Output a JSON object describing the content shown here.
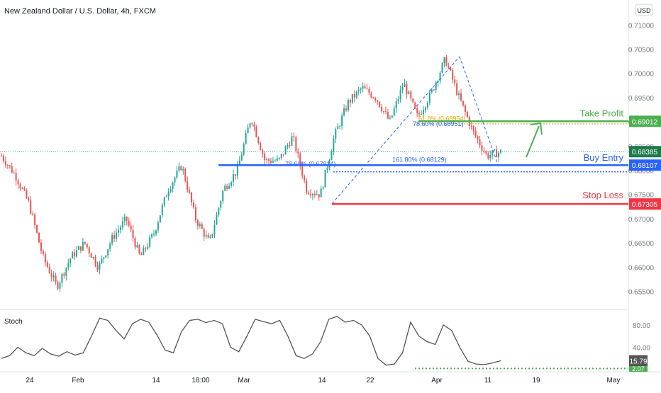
{
  "header": {
    "title": "New Zealand Dollar / U.S. Dollar, 4h, FXCM",
    "currency_button": "USD"
  },
  "colors": {
    "up_candle": "#26a69a",
    "down_candle": "#ef5350",
    "take_profit": "#4caf50",
    "buy_entry": "#2962ff",
    "stop_loss": "#f23645",
    "fib": "#2962ff",
    "fib_gold": "#e0a800",
    "stoch_line": "#555555",
    "stoch_dotted": "#4caf50",
    "axis_text": "#787b86",
    "grid": "#e0e3eb"
  },
  "chart_data": [
    {
      "type": "candlestick",
      "title": "New Zealand Dollar / U.S. Dollar, 4h, FXCM",
      "ylim": [
        0.652,
        0.714
      ],
      "y_ticks": [
        "0.71000",
        "0.70500",
        "0.70000",
        "0.69500",
        "0.69000",
        "0.68500",
        "0.68000",
        "0.67500",
        "0.67000",
        "0.66500",
        "0.66000",
        "0.65500"
      ],
      "y_tick_values": [
        0.71,
        0.705,
        0.7,
        0.695,
        0.69,
        0.685,
        0.68,
        0.675,
        0.67,
        0.665,
        0.66,
        0.655
      ],
      "x_ticks": [
        "24",
        "Feb",
        "14",
        "18:00",
        "Mar",
        "14",
        "22",
        "Apr",
        "11",
        "19",
        "May"
      ],
      "price_path": [
        {
          "x": "Jan 17",
          "y": 0.683
        },
        {
          "x": "Jan 20",
          "y": 0.679
        },
        {
          "x": "Jan 24",
          "y": 0.673
        },
        {
          "x": "Jan 27",
          "y": 0.662
        },
        {
          "x": "Jan 30",
          "y": 0.656
        },
        {
          "x": "Feb 2",
          "y": 0.662
        },
        {
          "x": "Feb 6",
          "y": 0.665
        },
        {
          "x": "Feb 9",
          "y": 0.66
        },
        {
          "x": "Feb 12",
          "y": 0.666
        },
        {
          "x": "Feb 15",
          "y": 0.67
        },
        {
          "x": "Feb 18",
          "y": 0.662
        },
        {
          "x": "Feb 21",
          "y": 0.667
        },
        {
          "x": "Feb 24",
          "y": 0.676
        },
        {
          "x": "Feb 26",
          "y": 0.681
        },
        {
          "x": "Feb 28",
          "y": 0.67
        },
        {
          "x": "Mar 1",
          "y": 0.665
        },
        {
          "x": "Mar 3",
          "y": 0.676
        },
        {
          "x": "Mar 6",
          "y": 0.68
        },
        {
          "x": "Mar 9",
          "y": 0.691
        },
        {
          "x": "Mar 10",
          "y": 0.682
        },
        {
          "x": "Mar 13",
          "y": 0.682
        },
        {
          "x": "Mar 15",
          "y": 0.687
        },
        {
          "x": "Mar 17",
          "y": 0.676
        },
        {
          "x": "Mar 18",
          "y": 0.675
        },
        {
          "x": "Mar 20",
          "y": 0.687
        },
        {
          "x": "Mar 22",
          "y": 0.694
        },
        {
          "x": "Mar 24",
          "y": 0.697
        },
        {
          "x": "Mar 27",
          "y": 0.695
        },
        {
          "x": "Mar 29",
          "y": 0.69
        },
        {
          "x": "Mar 31",
          "y": 0.698
        },
        {
          "x": "Apr 3",
          "y": 0.691
        },
        {
          "x": "Apr 5",
          "y": 0.696
        },
        {
          "x": "Apr 7",
          "y": 0.703
        },
        {
          "x": "Apr 8",
          "y": 0.695
        },
        {
          "x": "Apr 10",
          "y": 0.688
        },
        {
          "x": "Apr 12",
          "y": 0.683
        },
        {
          "x": "Apr 14",
          "y": 0.6838
        }
      ],
      "horizontal_levels": [
        {
          "name": "Take Profit",
          "value": 0.69012,
          "label": "0.69012",
          "color": "#4caf50"
        },
        {
          "name": "Buy Entry",
          "value": 0.68107,
          "label": "0.68107",
          "color": "#2962ff"
        },
        {
          "name": "Stop Loss",
          "value": 0.67305,
          "label": "0.67305",
          "color": "#f23645"
        }
      ],
      "current_price": {
        "value": 0.68385,
        "label": "0.68385"
      },
      "annotations": [
        {
          "text": "61.8% (0.68954)",
          "display": "61.8% (0.68954)"
        },
        {
          "text": "78.60% (0.68951)",
          "display": "78.60% (0.68951)"
        },
        {
          "text": "161.80% (0.68129)",
          "display": "161.80% (0.68129)"
        },
        {
          "text": "78.60% (0.67914)",
          "display": "78.60% (0.67914)"
        }
      ]
    },
    {
      "type": "line",
      "name": "Stoch",
      "ylim": [
        0,
        100
      ],
      "y_ticks": [
        "80.00",
        "40.00"
      ],
      "y_tick_values": [
        80,
        40
      ],
      "current_value": {
        "value": 15.79,
        "label": "15.79"
      },
      "dotted_level": {
        "value": 2.07,
        "label": "2.07"
      },
      "values": [
        20,
        25,
        40,
        30,
        25,
        38,
        28,
        24,
        32,
        26,
        30,
        60,
        92,
        88,
        70,
        55,
        82,
        90,
        85,
        62,
        35,
        30,
        68,
        88,
        90,
        84,
        88,
        82,
        40,
        32,
        60,
        90,
        86,
        82,
        88,
        60,
        25,
        20,
        28,
        50,
        90,
        95,
        85,
        88,
        80,
        60,
        20,
        8,
        10,
        30,
        85,
        60,
        50,
        45,
        80,
        70,
        40,
        15,
        10,
        9,
        12,
        15.79
      ]
    }
  ]
}
